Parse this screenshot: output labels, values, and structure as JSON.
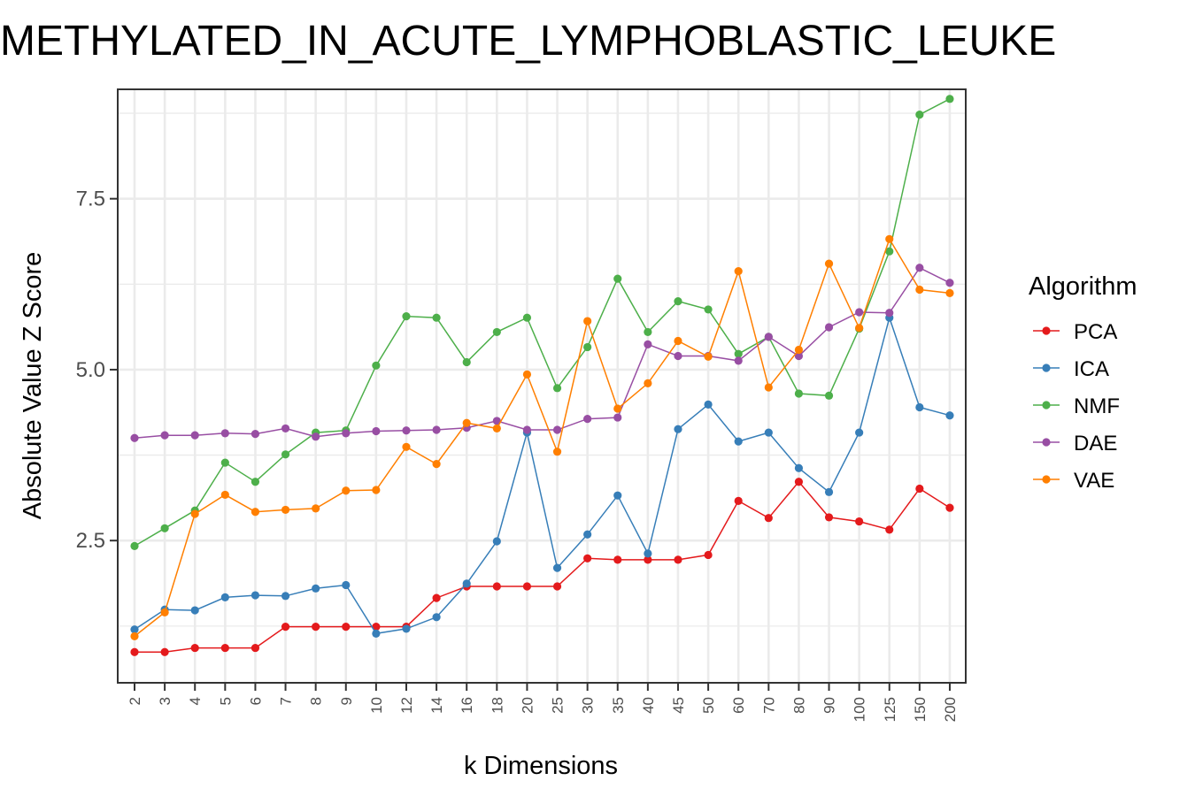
{
  "chart_data": {
    "type": "line",
    "title": "METHYLATED_IN_ACUTE_LYMPHOBLASTIC_LEUKE",
    "xlabel": "k Dimensions",
    "ylabel": "Absolute Value Z Score",
    "ylim": [
      0.42,
      9.1
    ],
    "yticks": [
      2.5,
      5.0,
      7.5
    ],
    "ytick_labels": [
      "2.5",
      "5.0",
      "7.5"
    ],
    "grid": true,
    "categories": [
      "2",
      "3",
      "4",
      "5",
      "6",
      "7",
      "8",
      "9",
      "10",
      "12",
      "14",
      "16",
      "18",
      "20",
      "25",
      "30",
      "35",
      "40",
      "45",
      "50",
      "60",
      "70",
      "80",
      "90",
      "100",
      "125",
      "150",
      "200"
    ],
    "legend": {
      "title": "Algorithm",
      "position": "right"
    },
    "series": [
      {
        "name": "PCA",
        "color": "#e41a1c",
        "values": [
          0.87,
          0.87,
          0.93,
          0.93,
          0.93,
          1.24,
          1.24,
          1.24,
          1.24,
          1.24,
          1.66,
          1.83,
          1.83,
          1.83,
          1.83,
          2.24,
          2.22,
          2.22,
          2.22,
          2.29,
          3.08,
          2.83,
          3.36,
          2.84,
          2.78,
          2.66,
          3.26,
          2.98
        ]
      },
      {
        "name": "ICA",
        "color": "#377eb8",
        "values": [
          1.2,
          1.49,
          1.48,
          1.67,
          1.7,
          1.69,
          1.8,
          1.85,
          1.14,
          1.21,
          1.38,
          1.87,
          2.49,
          4.08,
          2.1,
          2.59,
          3.16,
          2.31,
          4.13,
          4.49,
          3.95,
          4.08,
          3.56,
          3.21,
          4.08,
          5.76,
          4.45,
          4.33
        ]
      },
      {
        "name": "NMF",
        "color": "#4daf4a",
        "values": [
          2.42,
          2.68,
          2.94,
          3.64,
          3.36,
          3.76,
          4.08,
          4.11,
          5.06,
          5.78,
          5.76,
          5.11,
          5.55,
          5.76,
          4.73,
          5.33,
          6.33,
          5.55,
          6.0,
          5.88,
          5.23,
          5.48,
          4.65,
          4.62,
          5.6,
          6.73,
          8.73,
          8.96
        ]
      },
      {
        "name": "DAE",
        "color": "#984ea3",
        "values": [
          4.0,
          4.04,
          4.04,
          4.07,
          4.06,
          4.14,
          4.02,
          4.07,
          4.1,
          4.11,
          4.12,
          4.15,
          4.25,
          4.12,
          4.12,
          4.28,
          4.3,
          5.37,
          5.2,
          5.2,
          5.13,
          5.48,
          5.2,
          5.62,
          5.84,
          5.83,
          6.49,
          6.27
        ]
      },
      {
        "name": "VAE",
        "color": "#ff7f00",
        "values": [
          1.1,
          1.45,
          2.89,
          3.17,
          2.92,
          2.95,
          2.97,
          3.23,
          3.24,
          3.87,
          3.62,
          4.22,
          4.14,
          4.93,
          3.8,
          5.71,
          4.43,
          4.8,
          5.42,
          5.19,
          6.44,
          4.74,
          5.29,
          6.55,
          5.61,
          6.91,
          6.17,
          6.12
        ]
      }
    ]
  }
}
